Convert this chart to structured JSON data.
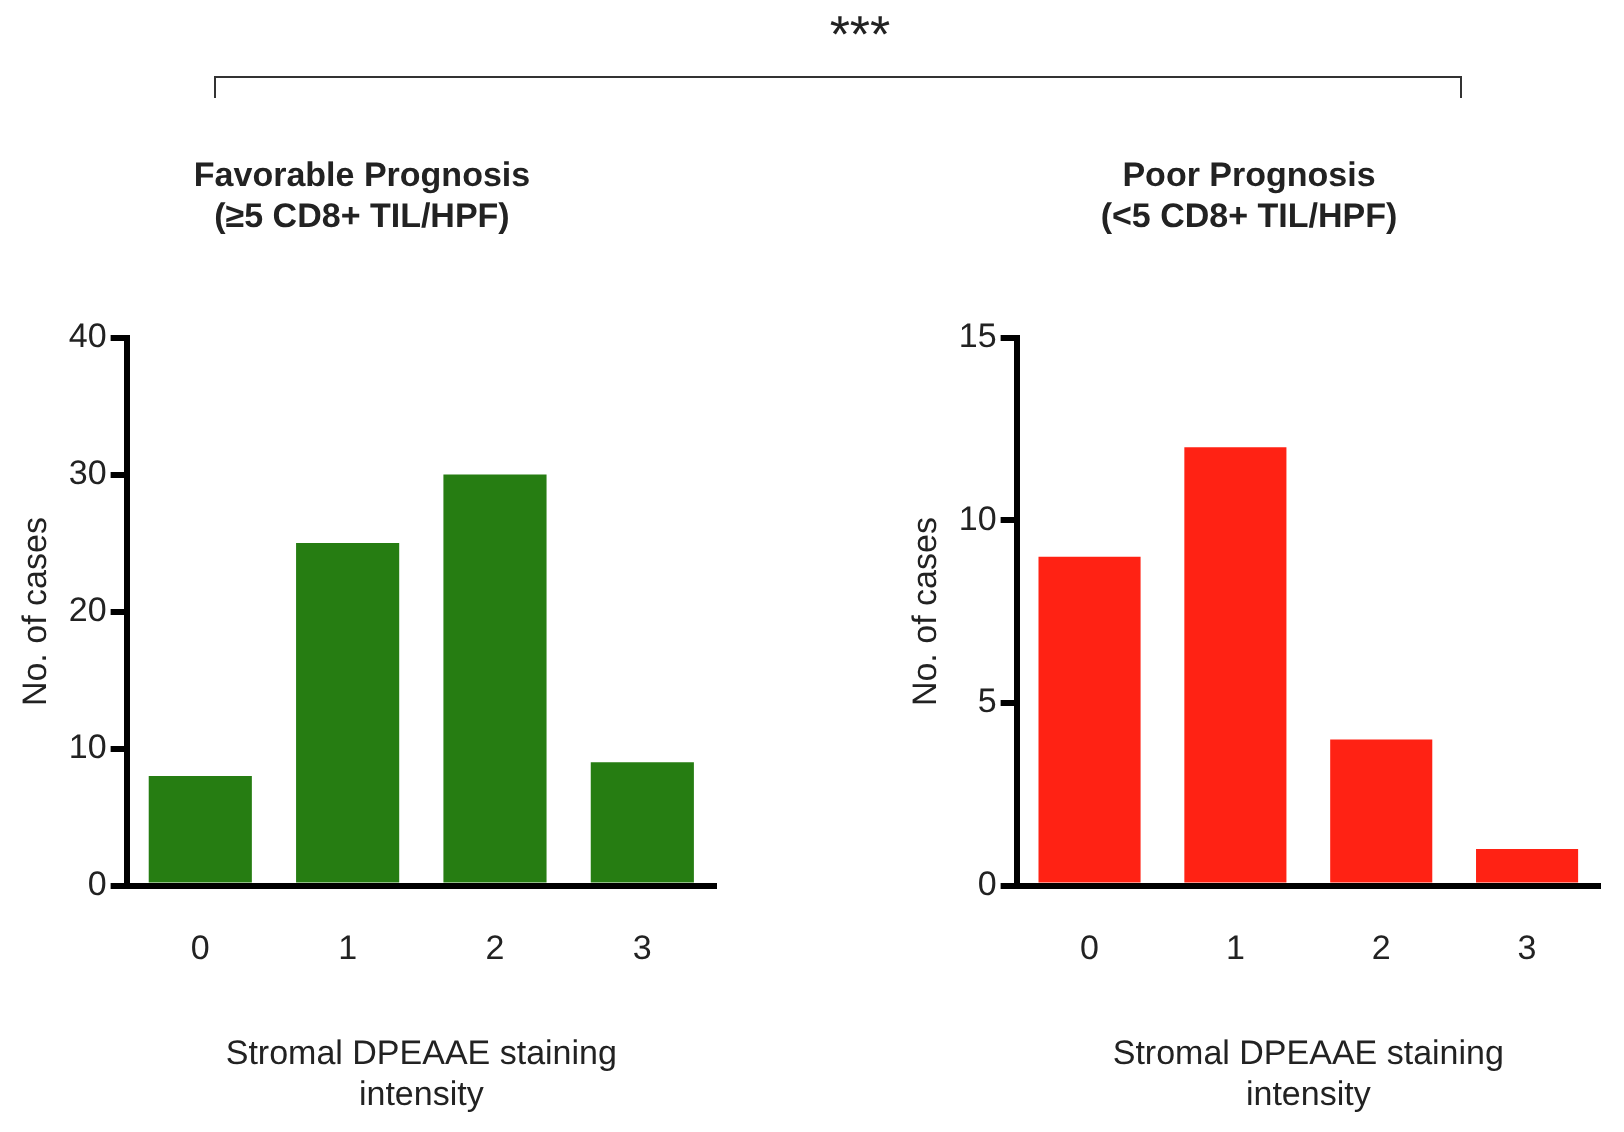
{
  "chart_data": [
    {
      "type": "bar",
      "title": "Favorable Prognosis\n(≥5 CD8+ TIL/HPF)",
      "xlabel": "Stromal DPEAAE staining\nintensity",
      "ylabel": "No. of cases",
      "categories": [
        "0",
        "1",
        "2",
        "3"
      ],
      "values": [
        8,
        25,
        30,
        9
      ],
      "color": "#267d12",
      "ylim": [
        0,
        40
      ],
      "yticks": [
        0,
        10,
        20,
        30,
        40
      ],
      "annotations": [
        "***"
      ]
    },
    {
      "type": "bar",
      "title": "Poor Prognosis\n(<5 CD8+ TIL/HPF)",
      "xlabel": "Stromal DPEAAE staining\nintensity",
      "ylabel": "No. of cases",
      "categories": [
        "0",
        "1",
        "2",
        "3"
      ],
      "values": [
        9,
        12,
        4,
        1
      ],
      "color": "#ff2214",
      "ylim": [
        0,
        15
      ],
      "yticks": [
        0,
        5,
        10,
        15
      ]
    }
  ]
}
